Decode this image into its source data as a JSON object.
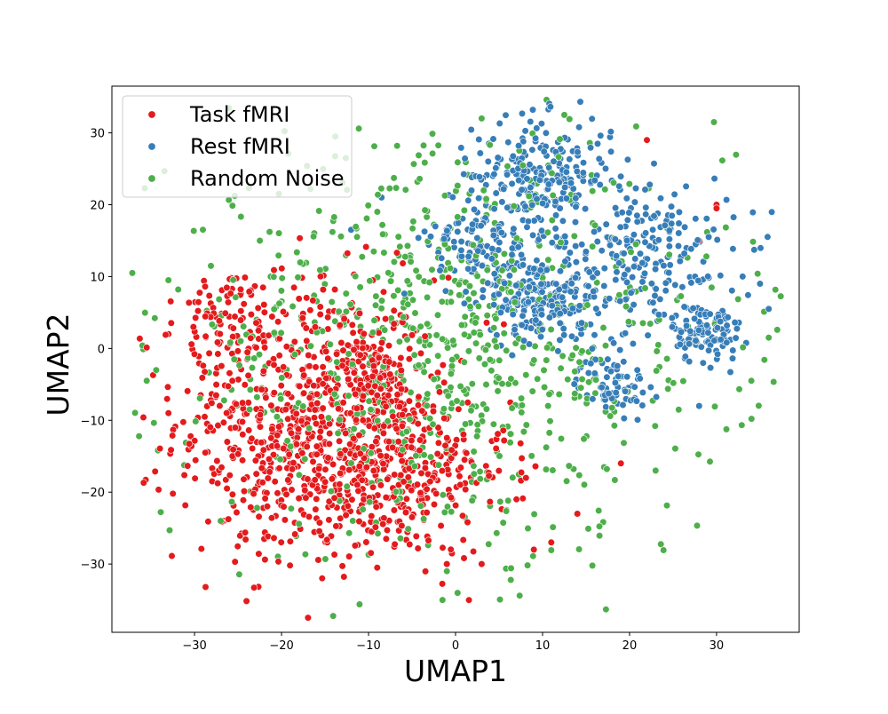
{
  "chart_data": {
    "type": "scatter",
    "title": "",
    "xlabel": "UMAP1",
    "ylabel": "UMAP2",
    "xlim": [
      -39.5,
      39.5
    ],
    "ylim": [
      -39.5,
      36.5
    ],
    "xticks": [
      -30,
      -20,
      -10,
      0,
      10,
      20,
      30
    ],
    "yticks": [
      -30,
      -20,
      -10,
      0,
      10,
      20,
      30
    ],
    "xtick_labels": [
      "−30",
      "−20",
      "−10",
      "0",
      "10",
      "20",
      "30"
    ],
    "ytick_labels": [
      "−30",
      "−20",
      "−10",
      "0",
      "10",
      "20",
      "30"
    ],
    "grid": false,
    "legend_position": "top-left",
    "series": [
      {
        "name": "Task fMRI",
        "color": "#e41a1c",
        "clusters": [
          {
            "cx": -17,
            "cy": -10,
            "sx": 7.5,
            "sy": 10,
            "n": 650
          },
          {
            "cx": -8,
            "cy": -17,
            "sx": 7,
            "sy": 6,
            "n": 350
          },
          {
            "cx": -9,
            "cy": -4,
            "sx": 2,
            "sy": 2,
            "n": 90
          },
          {
            "cx": -26,
            "cy": 4,
            "sx": 2.5,
            "sy": 3.5,
            "n": 70
          }
        ],
        "extra_points": [
          [
            -33,
            -9
          ],
          [
            -33,
            2
          ],
          [
            -9,
            -30.5
          ],
          [
            -1,
            -30
          ],
          [
            3,
            -30
          ],
          [
            7,
            -21
          ],
          [
            9,
            -28
          ],
          [
            11,
            -27
          ],
          [
            14,
            -23
          ],
          [
            19,
            -16
          ],
          [
            22,
            29
          ],
          [
            30,
            20
          ],
          [
            30,
            19.5
          ],
          [
            28,
            15
          ],
          [
            -9.5,
            9.5
          ]
        ]
      },
      {
        "name": "Rest fMRI",
        "color": "#377eb8",
        "clusters": [
          {
            "cx": 10,
            "cy": 24,
            "sx": 4,
            "sy": 4,
            "n": 230
          },
          {
            "cx": 3,
            "cy": 15,
            "sx": 3,
            "sy": 4,
            "n": 130
          },
          {
            "cx": 10,
            "cy": 7,
            "sx": 3,
            "sy": 3,
            "n": 200
          },
          {
            "cx": 18,
            "cy": -5,
            "sx": 2,
            "sy": 2,
            "n": 70
          },
          {
            "cx": 29,
            "cy": 2,
            "sx": 2,
            "sy": 2,
            "n": 100
          },
          {
            "cx": 22,
            "cy": 12,
            "sx": 5,
            "sy": 6,
            "n": 230
          }
        ],
        "extra_points": [
          [
            -8.5,
            21
          ],
          [
            -12,
            16.5
          ],
          [
            33,
            10
          ],
          [
            35,
            9
          ],
          [
            36,
            5.5
          ],
          [
            28,
            -8
          ]
        ]
      },
      {
        "name": "Random Noise",
        "color": "#4daf4a",
        "clusters": [
          {
            "cx": -1,
            "cy": 0,
            "sx": 16,
            "sy": 14,
            "n": 850
          }
        ],
        "extra_points": [
          [
            -35.5,
            -4.5
          ],
          [
            -33,
            9.5
          ],
          [
            -1.5,
            -35
          ],
          [
            -1,
            -31
          ],
          [
            -22.5,
            15
          ],
          [
            -27,
            -24
          ],
          [
            34,
            -4.5
          ],
          [
            36,
            1.5
          ],
          [
            12.5,
            32.5
          ],
          [
            3,
            32
          ],
          [
            23,
            -17
          ]
        ]
      }
    ]
  }
}
